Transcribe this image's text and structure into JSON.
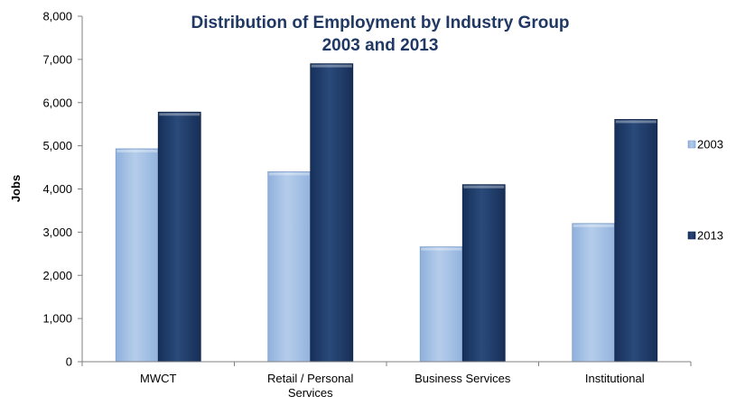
{
  "chart_data": {
    "type": "bar",
    "title": "Distribution of Employment by Industry Group",
    "subtitle": "2003 and 2013",
    "xlabel": "",
    "ylabel": "Jobs",
    "ylim": [
      0,
      8000
    ],
    "yticks": [
      "0",
      "1,000",
      "2,000",
      "3,000",
      "4,000",
      "5,000",
      "6,000",
      "7,000",
      "8,000"
    ],
    "categories": [
      [
        "MWCT"
      ],
      [
        "Retail / Personal",
        "Services"
      ],
      [
        "Business Services"
      ],
      [
        "Institutional"
      ]
    ],
    "series": [
      {
        "name": "2003",
        "values": [
          4930,
          4400,
          2660,
          3200
        ],
        "color": "#a7c1e4"
      },
      {
        "name": "2013",
        "values": [
          5780,
          6900,
          4100,
          5610
        ],
        "color": "#1f3b64"
      }
    ],
    "grid": false,
    "legend_position": "right"
  }
}
